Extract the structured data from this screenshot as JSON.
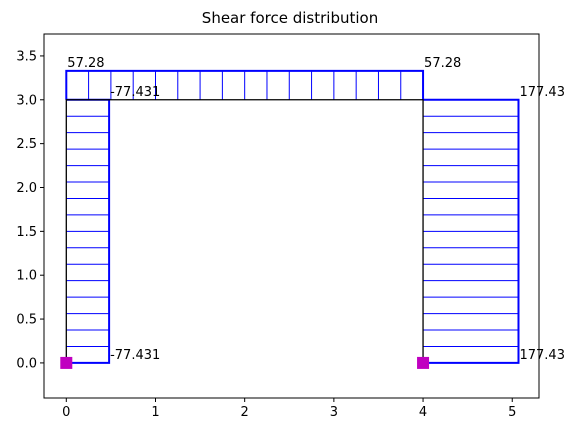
{
  "chart_data": {
    "type": "line",
    "title": "Shear force distribution",
    "xlabel": "",
    "ylabel": "",
    "xlim": [
      -0.25,
      5.3
    ],
    "ylim": [
      -0.4,
      3.75
    ],
    "xticks": [
      0,
      1,
      2,
      3,
      4,
      5
    ],
    "xtick_labels": [
      "0",
      "1",
      "2",
      "3",
      "4",
      "5"
    ],
    "yticks": [
      0.0,
      0.5,
      1.0,
      1.5,
      2.0,
      2.5,
      3.0,
      3.5
    ],
    "ytick_labels": [
      "0.0",
      "0.5",
      "1.0",
      "1.5",
      "2.0",
      "2.5",
      "3.0",
      "3.5"
    ],
    "grid": false,
    "colors": {
      "frame": "#000000",
      "diagram": "#0000ff",
      "support": "#c000c0"
    },
    "frame": {
      "nodes": [
        [
          0,
          0
        ],
        [
          0,
          3
        ],
        [
          4,
          3
        ],
        [
          4,
          0
        ]
      ]
    },
    "supports": [
      [
        0,
        0
      ],
      [
        4,
        0
      ]
    ],
    "diagrams": [
      {
        "member": "left-column",
        "outline": [
          [
            0,
            0
          ],
          [
            0.48,
            0
          ],
          [
            0.48,
            3
          ],
          [
            0,
            3
          ]
        ],
        "fill_lines": {
          "axis": "y",
          "start": 0,
          "end": 3,
          "count": 17,
          "x0": 0,
          "x1": 0.48
        }
      },
      {
        "member": "beam",
        "outline": [
          [
            0,
            3
          ],
          [
            0,
            3.33
          ],
          [
            4,
            3.33
          ],
          [
            4,
            3
          ]
        ],
        "fill_lines": {
          "axis": "x",
          "start": 0,
          "end": 4,
          "count": 17,
          "y0": 3,
          "y1": 3.33
        }
      },
      {
        "member": "right-column",
        "outline": [
          [
            4,
            0
          ],
          [
            5.07,
            0
          ],
          [
            5.07,
            3
          ],
          [
            4,
            3
          ]
        ],
        "fill_lines": {
          "axis": "y",
          "start": 0,
          "end": 3,
          "count": 17,
          "x0": 4,
          "x1": 5.07
        }
      }
    ],
    "annotations": [
      {
        "text": "57.28",
        "x": 0,
        "y": 3.33
      },
      {
        "text": "57.28",
        "x": 4,
        "y": 3.33
      },
      {
        "text": "-77.431",
        "x": 0.48,
        "y": 3
      },
      {
        "text": "-77.431",
        "x": 0.48,
        "y": 0
      },
      {
        "text": "177.43",
        "x": 5.07,
        "y": 3
      },
      {
        "text": "177.43",
        "x": 5.07,
        "y": 0
      }
    ]
  }
}
